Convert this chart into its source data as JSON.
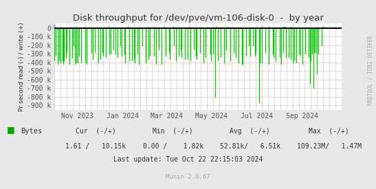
{
  "title": "Disk throughput for /dev/pve/vm-106-disk-0  -  by year",
  "ylabel": "Pr second read (-) / write (+)",
  "background_color": "#e8e8e8",
  "plot_bg_color": "#ffffff",
  "grid_color_minor": "#ddaaaa",
  "line_color_read": "#00cc00",
  "zero_line_color": "#000000",
  "ylim": [
    -950000,
    50000
  ],
  "xlim_start": 1696118400,
  "xlim_end": 1729728000,
  "x_ticks": [
    1698796800,
    1704067200,
    1709251200,
    1714521600,
    1719792000,
    1725148800
  ],
  "x_tick_labels": [
    "Nov 2023",
    "Jan 2024",
    "Mar 2024",
    "May 2024",
    "Jul 2024",
    "Sep 2024"
  ],
  "y_ticks": [
    0,
    -100000,
    -200000,
    -300000,
    -400000,
    -500000,
    -600000,
    -700000,
    -800000,
    -900000
  ],
  "y_tick_labels": [
    "0",
    "-100 k",
    "-200 k",
    "-300 k",
    "-400 k",
    "-500 k",
    "-600 k",
    "-700 k",
    "-800 k",
    "-900 k"
  ],
  "legend_label": "Bytes",
  "legend_color": "#00aa00",
  "footer_cur": "Cur  (-/+)",
  "footer_cur_val": "1.61 /   10.15k",
  "footer_min": "Min  (-/+)",
  "footer_min_val": "0.00 /    1.82k",
  "footer_avg": "Avg  (-/+)",
  "footer_avg_val": "52.81k/   6.51k",
  "footer_max": "Max  (-/+)",
  "footer_max_val": "109.23M/   1.47M",
  "footer_update": "Last update: Tue Oct 22 22:15:03 2024",
  "munin_version": "Munin 2.0.67",
  "rrdtool_label": "RRDTOOL / TOBI OETIKER",
  "title_color": "#333333",
  "text_color": "#333333",
  "tick_color": "#555555"
}
